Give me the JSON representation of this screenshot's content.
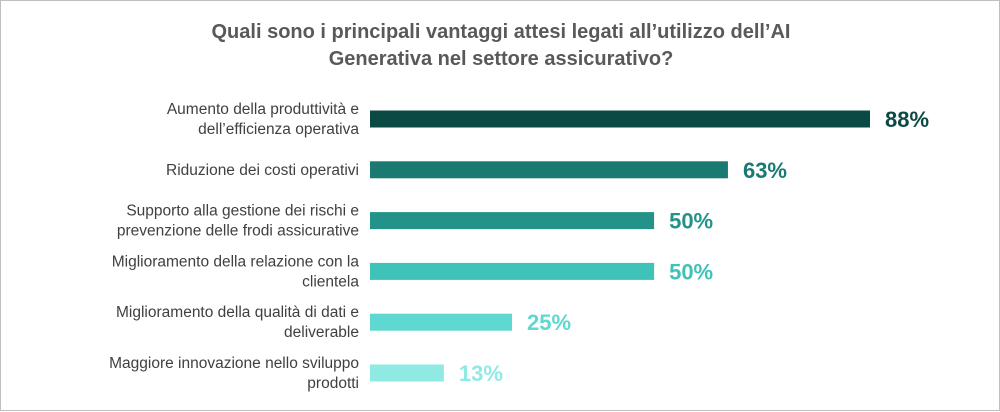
{
  "chart_data": {
    "type": "bar",
    "orientation": "horizontal",
    "title_lines": [
      "Quali sono i principali vantaggi attesi legati all’utilizzo dell’AI",
      "Generativa nel settore assicurativo?"
    ],
    "categories": [
      [
        "Aumento della produttività e",
        "dell’efficienza operativa"
      ],
      [
        "Riduzione dei costi operativi"
      ],
      [
        "Supporto alla gestione dei rischi e",
        "prevenzione delle frodi assicurative"
      ],
      [
        "Miglioramento della relazione con la",
        "clientela"
      ],
      [
        "Miglioramento della qualità di dati e",
        "deliverable"
      ],
      [
        "Maggiore innovazione nello sviluppo",
        "prodotti"
      ]
    ],
    "values": [
      88,
      63,
      50,
      50,
      25,
      13
    ],
    "value_labels": [
      "88%",
      "63%",
      "50%",
      "50%",
      "25%",
      "13%"
    ],
    "colors": [
      "#0b4a44",
      "#1a7a72",
      "#23938a",
      "#3fc2b8",
      "#5ed8d0",
      "#8eeae3"
    ],
    "xlim": [
      0,
      100
    ],
    "grid": false,
    "legend": "none"
  }
}
